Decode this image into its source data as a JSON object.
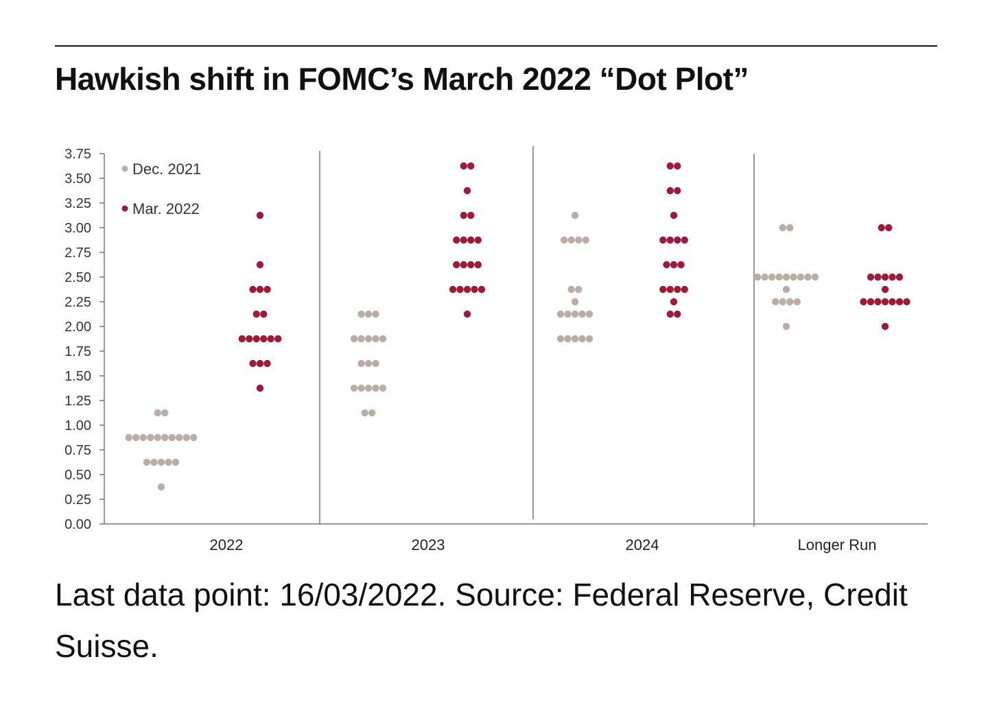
{
  "title": "Hawkish shift in FOMC’s March 2022 “Dot Plot”",
  "footnote": "Last data point: 16/03/2022. Source: Federal Reserve, Credit Suisse.",
  "colors": {
    "dec2021": "#b8aea5",
    "mar2022": "#a01a38",
    "axis": "#777777"
  },
  "chart_data": {
    "type": "scatter",
    "title": "Hawkish shift in FOMC’s March 2022 “Dot Plot”",
    "xlabel": "",
    "ylabel": "",
    "ylim": [
      0,
      3.75
    ],
    "yticks": [
      0,
      0.25,
      0.5,
      0.75,
      1.0,
      1.25,
      1.5,
      1.75,
      2.0,
      2.25,
      2.5,
      2.75,
      3.0,
      3.25,
      3.5,
      3.75
    ],
    "ytick_labels": [
      "0.00",
      "0.25",
      "0.50",
      "0.75",
      "1.00",
      "1.25",
      "1.50",
      "1.75",
      "2.00",
      "2.25",
      "2.50",
      "2.75",
      "3.00",
      "3.25",
      "3.50",
      "3.75"
    ],
    "categories": [
      "2022",
      "2023",
      "2024",
      "Longer Run"
    ],
    "legend_position": "top-left",
    "grid": false,
    "series": [
      {
        "name": "Dec. 2021",
        "color": "#b8aea5",
        "levels": [
          [
            {
              "y": 1.125,
              "count": 2
            },
            {
              "y": 0.875,
              "count": 10
            },
            {
              "y": 0.625,
              "count": 5
            },
            {
              "y": 0.375,
              "count": 1
            }
          ],
          [
            {
              "y": 2.125,
              "count": 3
            },
            {
              "y": 1.875,
              "count": 5
            },
            {
              "y": 1.625,
              "count": 3
            },
            {
              "y": 1.375,
              "count": 5
            },
            {
              "y": 1.125,
              "count": 2
            }
          ],
          [
            {
              "y": 3.125,
              "count": 1
            },
            {
              "y": 2.875,
              "count": 4
            },
            {
              "y": 2.375,
              "count": 2
            },
            {
              "y": 2.25,
              "count": 1
            },
            {
              "y": 2.125,
              "count": 5
            },
            {
              "y": 1.875,
              "count": 5
            }
          ],
          [
            {
              "y": 3.0,
              "count": 2
            },
            {
              "y": 2.5,
              "count": 9
            },
            {
              "y": 2.375,
              "count": 1
            },
            {
              "y": 2.25,
              "count": 4
            },
            {
              "y": 2.0,
              "count": 1
            }
          ]
        ]
      },
      {
        "name": "Mar. 2022",
        "color": "#a01a38",
        "levels": [
          [
            {
              "y": 3.125,
              "count": 1
            },
            {
              "y": 2.625,
              "count": 1
            },
            {
              "y": 2.375,
              "count": 3
            },
            {
              "y": 2.125,
              "count": 2
            },
            {
              "y": 1.875,
              "count": 6
            },
            {
              "y": 1.625,
              "count": 3
            },
            {
              "y": 1.375,
              "count": 1
            }
          ],
          [
            {
              "y": 3.625,
              "count": 2
            },
            {
              "y": 3.375,
              "count": 1
            },
            {
              "y": 3.125,
              "count": 2
            },
            {
              "y": 2.875,
              "count": 4
            },
            {
              "y": 2.625,
              "count": 4
            },
            {
              "y": 2.375,
              "count": 5
            },
            {
              "y": 2.125,
              "count": 1
            }
          ],
          [
            {
              "y": 3.625,
              "count": 2
            },
            {
              "y": 3.375,
              "count": 2
            },
            {
              "y": 3.125,
              "count": 1
            },
            {
              "y": 2.875,
              "count": 4
            },
            {
              "y": 2.625,
              "count": 3
            },
            {
              "y": 2.375,
              "count": 4
            },
            {
              "y": 2.25,
              "count": 1
            },
            {
              "y": 2.125,
              "count": 2
            }
          ],
          [
            {
              "y": 3.0,
              "count": 2
            },
            {
              "y": 2.5,
              "count": 5
            },
            {
              "y": 2.375,
              "count": 1
            },
            {
              "y": 2.25,
              "count": 7
            },
            {
              "y": 2.0,
              "count": 1
            }
          ]
        ]
      }
    ]
  }
}
